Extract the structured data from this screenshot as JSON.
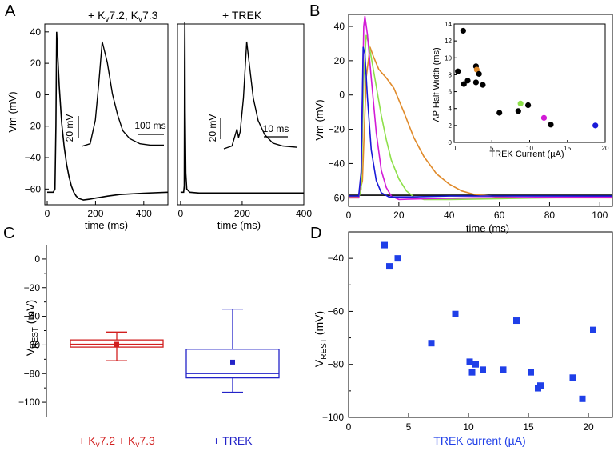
{
  "panel_labels": {
    "A": "A",
    "B": "B",
    "C": "C",
    "D": "D"
  },
  "colors": {
    "black": "#000000",
    "orange": "#e08a2a",
    "green": "#8ee04a",
    "magenta": "#d21ad6",
    "blue": "#1a1ad8",
    "red": "#d21f1f",
    "boxblue": "#2323c8",
    "scatterblue": "#1f3fe8",
    "lightgray": "#d8d8d8"
  },
  "chart_data": [
    {
      "id": "A-left",
      "type": "line",
      "title": "+ Kv7.2, Kv7.3",
      "title_parts": {
        "pre": "+ K",
        "sub1": "v",
        "mid": "7.2, K",
        "sub2": "v",
        "post": "7.3"
      },
      "xlabel": "time (ms)",
      "ylabel": "Vm (mV)",
      "xlim": [
        -10,
        500
      ],
      "ylim": [
        -70,
        45
      ],
      "xticks": [
        0,
        200,
        400
      ],
      "yticks": [
        40,
        20,
        0,
        -20,
        -40,
        -60
      ],
      "series": [
        {
          "x": [
            0,
            25,
            32,
            36,
            39,
            42,
            50,
            60,
            70,
            80,
            90,
            100,
            110,
            120,
            130,
            150,
            175,
            200,
            250,
            300,
            400,
            500
          ],
          "y": [
            -62,
            -62,
            -60,
            -20,
            40,
            30,
            5,
            -18,
            -33,
            -44,
            -52,
            -58,
            -62,
            -64.5,
            -66,
            -67,
            -66.5,
            -65.8,
            -64.5,
            -63.5,
            -62.6,
            -62
          ]
        }
      ],
      "inset": {
        "scalebar_v": "20 mV",
        "scalebar_t": "100 ms",
        "x": [
          0,
          5,
          8,
          10,
          12,
          15,
          18,
          21,
          24,
          28,
          34,
          40,
          48
        ],
        "y": [
          -62,
          -61,
          -52,
          -38,
          -22,
          -30,
          -42,
          -50,
          -56,
          -59,
          -61,
          -61.5,
          -61.5
        ]
      }
    },
    {
      "id": "A-right",
      "type": "line",
      "title": "+ TREK",
      "xlabel": "time (ms)",
      "xlim": [
        -10,
        400
      ],
      "ylim": [
        -70,
        45
      ],
      "xticks": [
        0,
        200,
        400
      ],
      "series": [
        {
          "x": [
            0,
            10,
            12,
            13,
            14,
            15,
            17,
            20,
            30,
            60,
            100,
            200,
            300,
            400
          ],
          "y": [
            -62,
            -62,
            -58,
            20,
            46,
            -10,
            -50,
            -60,
            -62,
            -62.5,
            -62.5,
            -62.5,
            -62.5,
            -62.5
          ]
        }
      ],
      "inset": {
        "scalebar_v": "20 mV",
        "scalebar_t": "10 ms",
        "x": [
          0,
          5,
          7,
          8,
          9,
          10,
          12,
          14,
          16,
          18,
          21,
          25,
          30,
          36,
          45
        ],
        "y": [
          -62,
          -61,
          -57,
          -55,
          -58,
          -56,
          -44,
          -24,
          -34,
          -44,
          -52,
          -57,
          -60,
          -61,
          -61.5
        ]
      }
    },
    {
      "id": "B",
      "type": "line",
      "xlabel": "time (ms)",
      "ylabel": "Vm (mV)",
      "xlim": [
        0,
        105
      ],
      "ylim": [
        -65,
        47
      ],
      "xticks": [
        0,
        20,
        40,
        60,
        80,
        100
      ],
      "yticks": [
        40,
        20,
        0,
        -20,
        -40,
        -60
      ],
      "series": [
        {
          "color": "black",
          "x": [
            0,
            105
          ],
          "y": [
            -58.5,
            -58.5
          ]
        },
        {
          "color": "orange",
          "x": [
            0,
            4,
            5.5,
            7,
            8.5,
            10,
            12,
            15,
            18,
            22,
            26,
            30,
            35,
            40,
            45,
            50,
            60,
            70,
            80,
            90,
            105
          ],
          "y": [
            -59.5,
            -59.5,
            -50,
            10,
            28,
            22,
            15,
            10,
            4,
            -10,
            -25,
            -36,
            -46,
            -52,
            -56,
            -58,
            -59.5,
            -60,
            -60,
            -60,
            -60
          ]
        },
        {
          "color": "green",
          "x": [
            0,
            4,
            5,
            6,
            7,
            8,
            9,
            11,
            13,
            15,
            17,
            20,
            23,
            26,
            30,
            40,
            60,
            80,
            105
          ],
          "y": [
            -60,
            -60,
            -55,
            10,
            35,
            30,
            22,
            5,
            -12,
            -26,
            -38,
            -49,
            -56,
            -59.5,
            -61,
            -61,
            -60.5,
            -60,
            -59.5
          ]
        },
        {
          "color": "magenta",
          "x": [
            0,
            4,
            5,
            6,
            6.5,
            7.5,
            9,
            11,
            13,
            15,
            17,
            20,
            30,
            50,
            105
          ],
          "y": [
            -60,
            -60,
            -45,
            40,
            46,
            35,
            10,
            -22,
            -44,
            -54,
            -59,
            -61,
            -60.5,
            -60,
            -59.5
          ]
        },
        {
          "color": "blue",
          "x": [
            0,
            4,
            5,
            5.8,
            6.5,
            7.5,
            9,
            11,
            13,
            16,
            25,
            40,
            105
          ],
          "y": [
            -59,
            -59,
            -45,
            28,
            24,
            -2,
            -32,
            -50,
            -57,
            -59.5,
            -59.5,
            -59,
            -59
          ]
        }
      ],
      "inset": {
        "type": "scatter",
        "xlabel": "TREK Current (µA)",
        "ylabel": "AP Half Width (ms)",
        "xlim": [
          0,
          20
        ],
        "ylim": [
          0,
          14
        ],
        "xticks": [
          0,
          5,
          10,
          15,
          20
        ],
        "yticks": [
          0,
          2,
          4,
          6,
          8,
          10,
          12,
          14
        ],
        "points": [
          {
            "x": 0.5,
            "y": 8.4,
            "color": "black"
          },
          {
            "x": 1.2,
            "y": 13.2,
            "color": "black"
          },
          {
            "x": 1.3,
            "y": 6.9,
            "color": "black"
          },
          {
            "x": 1.8,
            "y": 7.3,
            "color": "black"
          },
          {
            "x": 2.9,
            "y": 9.0,
            "color": "black"
          },
          {
            "x": 2.9,
            "y": 7.1,
            "color": "black"
          },
          {
            "x": 3.0,
            "y": 8.6,
            "color": "orange"
          },
          {
            "x": 3.3,
            "y": 8.1,
            "color": "black"
          },
          {
            "x": 3.8,
            "y": 6.8,
            "color": "black"
          },
          {
            "x": 6.0,
            "y": 3.5,
            "color": "black"
          },
          {
            "x": 8.5,
            "y": 3.7,
            "color": "black"
          },
          {
            "x": 8.8,
            "y": 4.6,
            "color": "green"
          },
          {
            "x": 9.8,
            "y": 4.4,
            "color": "black"
          },
          {
            "x": 11.9,
            "y": 2.9,
            "color": "magenta"
          },
          {
            "x": 12.8,
            "y": 2.1,
            "color": "black"
          },
          {
            "x": 18.7,
            "y": 2.0,
            "color": "blue"
          }
        ]
      }
    },
    {
      "id": "C",
      "type": "box",
      "ylabel": "V_REST (mV)",
      "ylabel_parts": {
        "main": "V",
        "sub": "REST",
        "unit": " (mV)"
      },
      "ylim": [
        -110,
        10
      ],
      "yticks": [
        0,
        -20,
        -40,
        -60,
        -80,
        -100
      ],
      "categories": [
        "+ Kv7.2 + Kv7.3",
        "+ TREK"
      ],
      "category_parts": [
        {
          "pre": "+ K",
          "sub1": "v",
          "mid": "7.2 + K",
          "sub2": "v",
          "post": "7.3"
        },
        {
          "text": "+ TREK"
        }
      ],
      "boxes": [
        {
          "color": "red",
          "whisker_low": -71,
          "q1": -61.5,
          "median": -59.5,
          "q3": -56.5,
          "whisker_high": -51,
          "mean": -59.5
        },
        {
          "color": "boxblue",
          "whisker_low": -93,
          "q1": -83,
          "median": -80,
          "q3": -63,
          "whisker_high": -35,
          "mean": -72
        }
      ]
    },
    {
      "id": "D",
      "type": "scatter",
      "xlabel": "TREK current (µA)",
      "ylabel": "V_REST (mV)",
      "ylabel_parts": {
        "main": "V",
        "sub": "REST",
        "unit": " (mV)"
      },
      "xlim": [
        0,
        22
      ],
      "ylim": [
        -100,
        -30
      ],
      "xticks": [
        0,
        5,
        10,
        15,
        20
      ],
      "yticks": [
        -40,
        -60,
        -80,
        -100
      ],
      "points": [
        {
          "x": 3.0,
          "y": -35
        },
        {
          "x": 3.4,
          "y": -43
        },
        {
          "x": 4.1,
          "y": -40
        },
        {
          "x": 6.9,
          "y": -72
        },
        {
          "x": 8.9,
          "y": -61
        },
        {
          "x": 10.1,
          "y": -79
        },
        {
          "x": 10.3,
          "y": -83
        },
        {
          "x": 10.6,
          "y": -80
        },
        {
          "x": 11.2,
          "y": -82
        },
        {
          "x": 12.9,
          "y": -82
        },
        {
          "x": 14.0,
          "y": -63.5
        },
        {
          "x": 15.2,
          "y": -83
        },
        {
          "x": 15.8,
          "y": -89
        },
        {
          "x": 16.0,
          "y": -88
        },
        {
          "x": 18.7,
          "y": -85
        },
        {
          "x": 19.5,
          "y": -93
        },
        {
          "x": 20.4,
          "y": -67
        }
      ]
    }
  ]
}
